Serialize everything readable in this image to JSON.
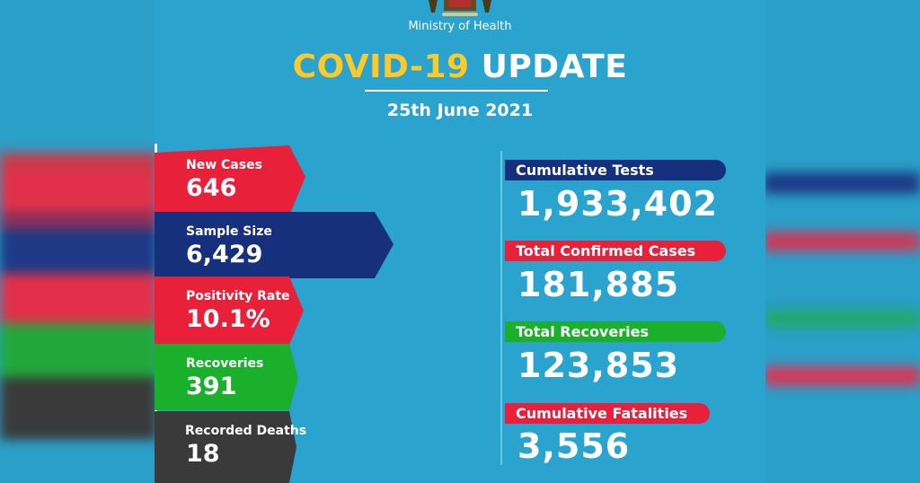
{
  "header": {
    "ministry": "Ministry of Health",
    "title_part1": "COVID-19",
    "title_part2": "UPDATE",
    "date": "25th June 2021"
  },
  "daily": [
    {
      "label": "New Cases",
      "value": "646",
      "color": "#e8203a"
    },
    {
      "label": "Sample Size",
      "value": "6,429",
      "color": "#17307d"
    },
    {
      "label": "Positivity Rate",
      "value": "10.1%",
      "color": "#e8203a"
    },
    {
      "label": "Recoveries",
      "value": "391",
      "color": "#1bb02c"
    },
    {
      "label": "Recorded Deaths",
      "value": "18",
      "color": "#3a3a3a"
    }
  ],
  "cumulative": [
    {
      "label": "Cumulative Tests",
      "value": "1,933,402",
      "color": "#17307d"
    },
    {
      "label": "Total Confirmed Cases",
      "value": "181,885",
      "color": "#e8203a"
    },
    {
      "label": "Total Recoveries",
      "value": "123,853",
      "color": "#1bb02c"
    },
    {
      "label": "Cumulative Fatalities",
      "value": "3,556",
      "color": "#e8203a"
    }
  ],
  "colors": {
    "background": "#2aa3cf",
    "title_accent": "#ffc928"
  }
}
